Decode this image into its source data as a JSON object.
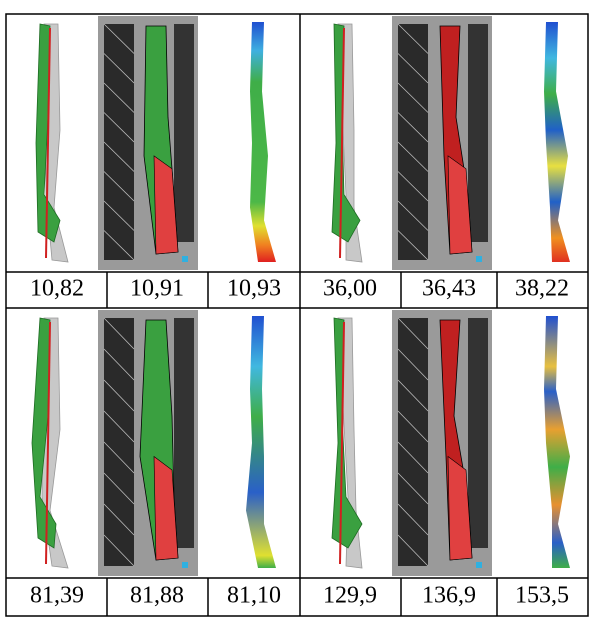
{
  "table": {
    "rows": [
      [
        "10,82",
        "10,91",
        "10,93",
        "36,00",
        "36,43",
        "38,22"
      ],
      [
        "81,39",
        "81,88",
        "81,10",
        "129,9",
        "136,9",
        "153,5"
      ]
    ]
  }
}
